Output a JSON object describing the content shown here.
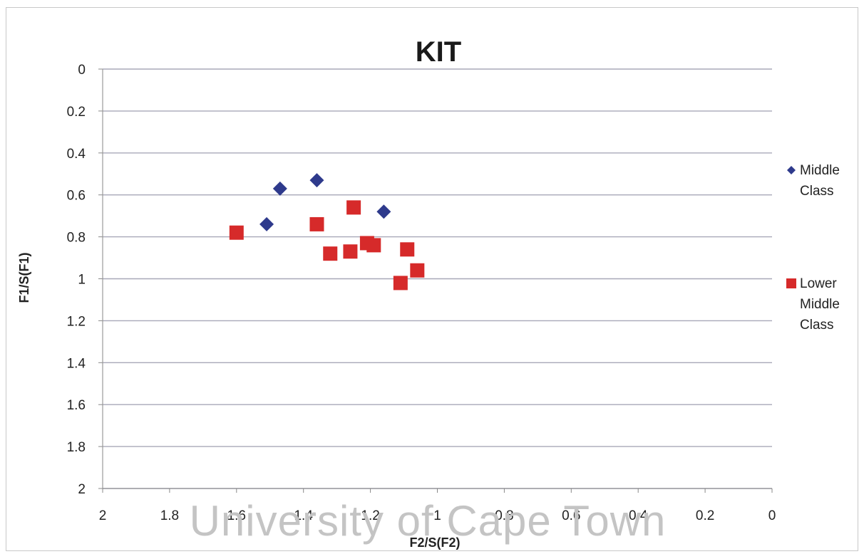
{
  "chart_data": {
    "type": "scatter",
    "title": "KIT",
    "xlabel": "F2/S(F2)",
    "ylabel": "F1/S(F1)",
    "xlim": [
      2,
      0
    ],
    "x_reversed": true,
    "ylim": [
      0,
      2
    ],
    "y_reversed": true,
    "x_ticks": [
      "2",
      "1.8",
      "1.6",
      "1.4",
      "1.2",
      "1",
      "0.8",
      "0.6",
      "0.4",
      "0.2",
      "0"
    ],
    "y_ticks": [
      "0",
      "0.2",
      "0.4",
      "0.6",
      "0.8",
      "1",
      "1.2",
      "1.4",
      "1.6",
      "1.8",
      "2"
    ],
    "grid": "horizontal",
    "legend_position": "right",
    "series": [
      {
        "name": "Middle Class",
        "legend_lines": [
          "Middle",
          "Class"
        ],
        "marker": "diamond",
        "color": "#2e3a8c",
        "points": [
          {
            "x": 1.47,
            "y": 0.57
          },
          {
            "x": 1.36,
            "y": 0.53
          },
          {
            "x": 1.51,
            "y": 0.74
          },
          {
            "x": 1.16,
            "y": 0.68
          }
        ]
      },
      {
        "name": "Lower Middle Class",
        "legend_lines": [
          "Lower",
          "Middle",
          "Class"
        ],
        "marker": "square",
        "color": "#d62a2a",
        "points": [
          {
            "x": 1.6,
            "y": 0.78
          },
          {
            "x": 1.36,
            "y": 0.74
          },
          {
            "x": 1.25,
            "y": 0.66
          },
          {
            "x": 1.32,
            "y": 0.88
          },
          {
            "x": 1.26,
            "y": 0.87
          },
          {
            "x": 1.21,
            "y": 0.83
          },
          {
            "x": 1.19,
            "y": 0.84
          },
          {
            "x": 1.09,
            "y": 0.86
          },
          {
            "x": 1.06,
            "y": 0.96
          },
          {
            "x": 1.11,
            "y": 1.02
          }
        ]
      }
    ]
  },
  "watermark": "University of Cape Town"
}
